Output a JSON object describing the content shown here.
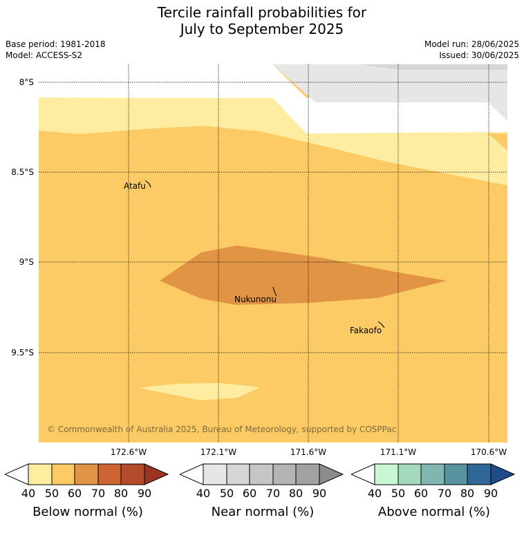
{
  "header": {
    "title_line1": "Tercile rainfall probabilities for",
    "title_line2": "July to September 2025",
    "base_period": "Base period: 1981-2018",
    "model": "Model: ACCESS-S2",
    "model_run": "Model run: 28/06/2025",
    "issued": "Issued: 30/06/2025"
  },
  "map": {
    "lat_labels": [
      "8°S",
      "8.5°S",
      "9°S",
      "9.5°S"
    ],
    "lon_labels": [
      "172.6°W",
      "172.1°W",
      "171.6°W",
      "171.1°W",
      "170.6°W"
    ],
    "places": [
      "Atafu",
      "Nukunonu",
      "Fakaofo"
    ],
    "copyright": "© Commonwealth of Australia 2025, Bureau of Meteorology, supported by COSPPac"
  },
  "legends": [
    {
      "title": "Below normal (%)",
      "ticks": [
        "40",
        "50",
        "60",
        "70",
        "80",
        "90"
      ],
      "colors": [
        "#ffffff",
        "#feeda0",
        "#fdcb66",
        "#e09444",
        "#cd6433",
        "#b44b2a",
        "#9b3520"
      ]
    },
    {
      "title": "Near normal (%)",
      "ticks": [
        "40",
        "50",
        "60",
        "70",
        "80",
        "90"
      ],
      "colors": [
        "#ffffff",
        "#e6e6e6",
        "#d6d6d6",
        "#c6c6c6",
        "#b4b4b4",
        "#a2a2a2",
        "#8c8c8c"
      ]
    },
    {
      "title": "Above normal (%)",
      "ticks": [
        "40",
        "50",
        "60",
        "70",
        "80",
        "90"
      ],
      "colors": [
        "#ffffff",
        "#c8f7d2",
        "#a3d9bd",
        "#7fb7b0",
        "#5a93a0",
        "#2f6797",
        "#1d4c88"
      ]
    }
  ]
}
